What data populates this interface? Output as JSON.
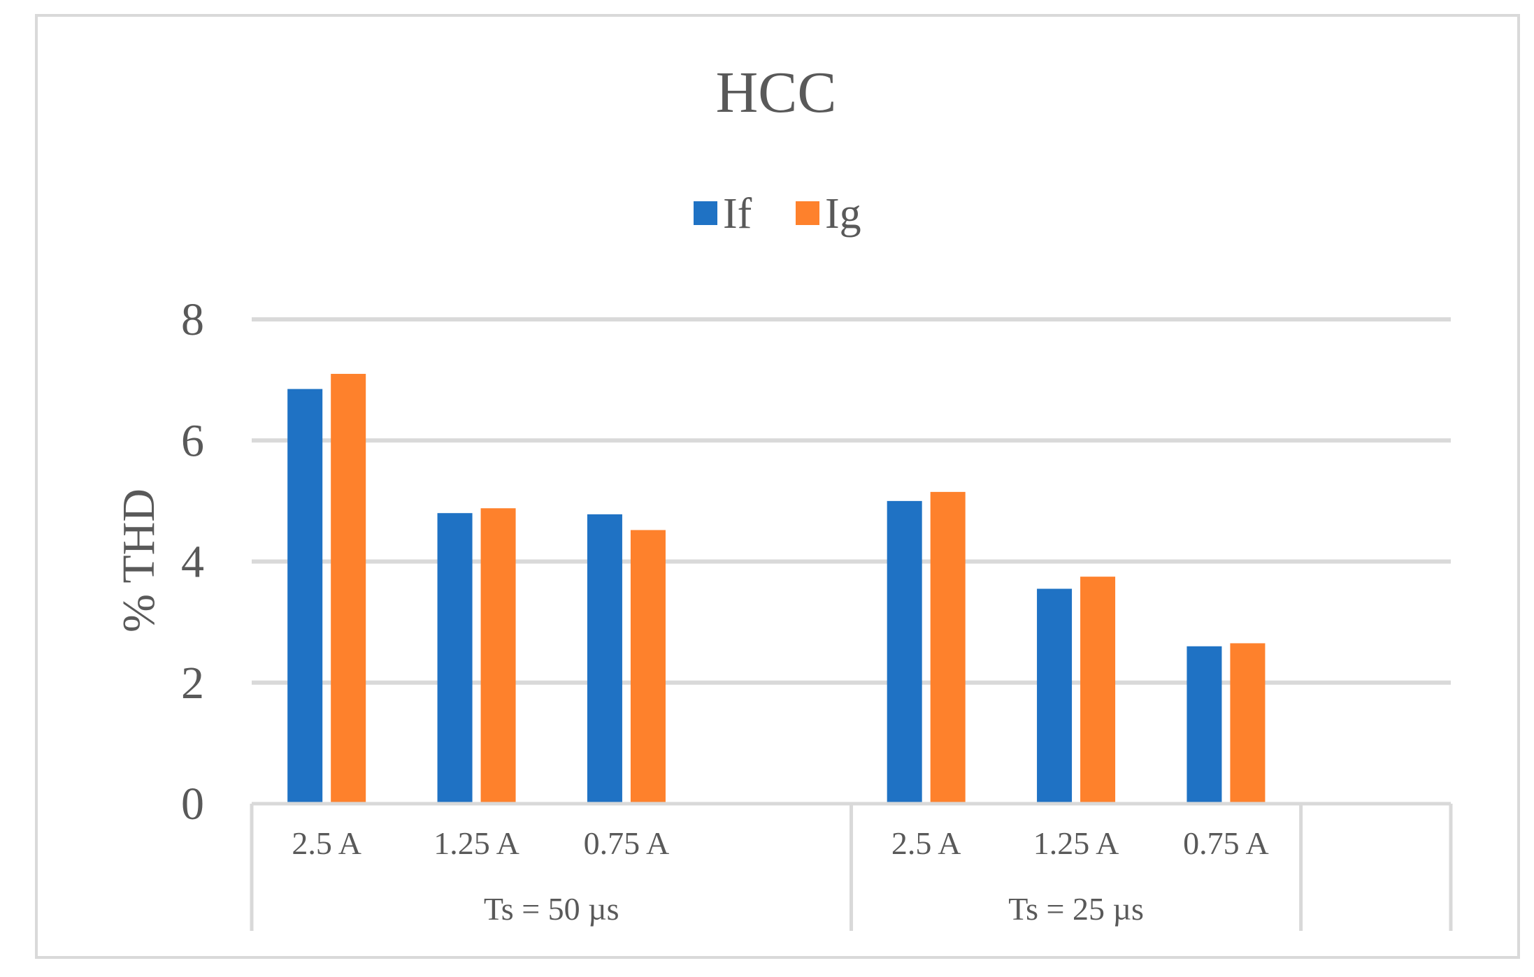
{
  "chart_data": {
    "type": "bar",
    "title": "HCC",
    "ylabel": "% THD",
    "xlabel": "",
    "ylim": [
      0,
      8
    ],
    "yticks": [
      "0",
      "2",
      "4",
      "6",
      "8"
    ],
    "grid": true,
    "legend_position": "top",
    "groups": [
      {
        "label": "Ts = 50 µs",
        "categories": [
          "2.5 A",
          "1.25 A",
          "0.75 A",
          ""
        ]
      },
      {
        "label": "Ts = 25 µs",
        "categories": [
          "2.5 A",
          "1.25 A",
          "0.75 A"
        ]
      }
    ],
    "categories": [
      "2.5 A",
      "1.25 A",
      "0.75 A",
      "",
      "2.5 A",
      "1.25 A",
      "0.75 A",
      ""
    ],
    "series": [
      {
        "name": "If",
        "color": "#1f72c4",
        "values": [
          6.85,
          4.8,
          4.78,
          null,
          5.0,
          3.55,
          2.6,
          null
        ]
      },
      {
        "name": "Ig",
        "color": "#fe812c",
        "values": [
          7.1,
          4.88,
          4.52,
          null,
          5.15,
          3.75,
          2.65,
          null
        ]
      }
    ]
  }
}
